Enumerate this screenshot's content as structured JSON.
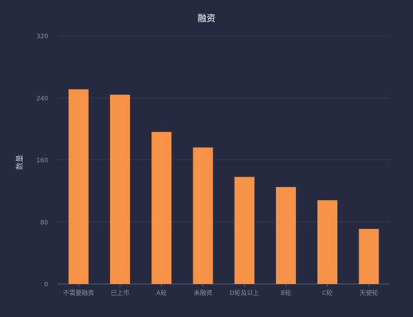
{
  "chart_data": {
    "type": "bar",
    "title": "融资",
    "xlabel": "",
    "ylabel": "数量",
    "categories": [
      "不需要融资",
      "已上市",
      "A轮",
      "未融资",
      "D轮及以上",
      "B轮",
      "C轮",
      "天使轮"
    ],
    "values": [
      251,
      244,
      196,
      176,
      138,
      125,
      108,
      71
    ],
    "ylim": [
      0,
      320
    ],
    "yticks": [
      "0",
      "80",
      "160",
      "240",
      "320"
    ],
    "grid": true,
    "colors": {
      "background": "#252a40",
      "bar": "#f79349",
      "grid": "#343a52",
      "axis": "#5c6278",
      "tick_text": "#8a8fa2",
      "title": "#ffffff"
    }
  }
}
